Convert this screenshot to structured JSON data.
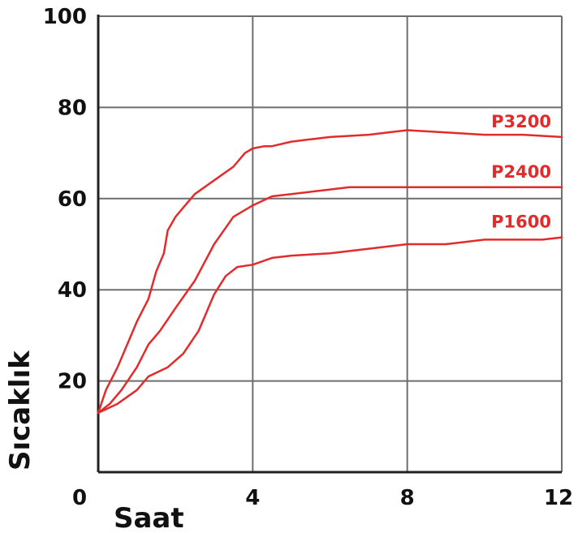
{
  "chart_data": {
    "type": "line",
    "title": "",
    "xlabel": "Saat",
    "ylabel": "Sıcaklık",
    "xlim": [
      0,
      12
    ],
    "ylim": [
      0,
      100
    ],
    "x_ticks": [
      "0",
      "4",
      "8",
      "12"
    ],
    "y_ticks": [
      "20",
      "40",
      "60",
      "80",
      "100"
    ],
    "grid": true,
    "line_color": "#e32b2b",
    "series": [
      {
        "name": "P3200",
        "x": [
          0,
          0.2,
          0.5,
          0.8,
          1.0,
          1.3,
          1.5,
          1.7,
          1.8,
          2.0,
          2.3,
          2.5,
          3.0,
          3.5,
          3.8,
          4.0,
          4.3,
          4.5,
          5.0,
          5.5,
          6.0,
          7.0,
          7.5,
          8.0,
          9.0,
          10.0,
          11.0,
          12.0
        ],
        "y": [
          13,
          18,
          23,
          29,
          33,
          38,
          44,
          48,
          53,
          56,
          59,
          61,
          64,
          67,
          70,
          71,
          71.5,
          71.5,
          72.5,
          73,
          73.5,
          74,
          74.5,
          75,
          74.5,
          74,
          74,
          73.5
        ]
      },
      {
        "name": "P2400",
        "x": [
          0,
          0.3,
          0.6,
          1.0,
          1.3,
          1.6,
          2.0,
          2.5,
          3.0,
          3.5,
          4.0,
          4.5,
          5.0,
          5.5,
          6.0,
          6.5,
          7.0,
          8.0,
          9.0,
          10.0,
          11.0,
          11.5,
          12.0
        ],
        "y": [
          13,
          15,
          18,
          23,
          28,
          31,
          36,
          42,
          50,
          56,
          58.5,
          60.5,
          61,
          61.5,
          62,
          62.5,
          62.5,
          62.5,
          62.5,
          62.5,
          62.5,
          62.5,
          62.5
        ]
      },
      {
        "name": "P1600",
        "x": [
          0,
          0.5,
          1.0,
          1.3,
          1.8,
          2.2,
          2.6,
          3.0,
          3.3,
          3.6,
          4.0,
          4.5,
          5.0,
          6.0,
          7.0,
          8.0,
          9.0,
          9.5,
          10.0,
          11.0,
          11.5,
          12.0
        ],
        "y": [
          13,
          15,
          18,
          21,
          23,
          26,
          31,
          39,
          43,
          45,
          45.5,
          47,
          47.5,
          48,
          49,
          50,
          50,
          50.5,
          51,
          51,
          51,
          51.5
        ]
      }
    ]
  }
}
